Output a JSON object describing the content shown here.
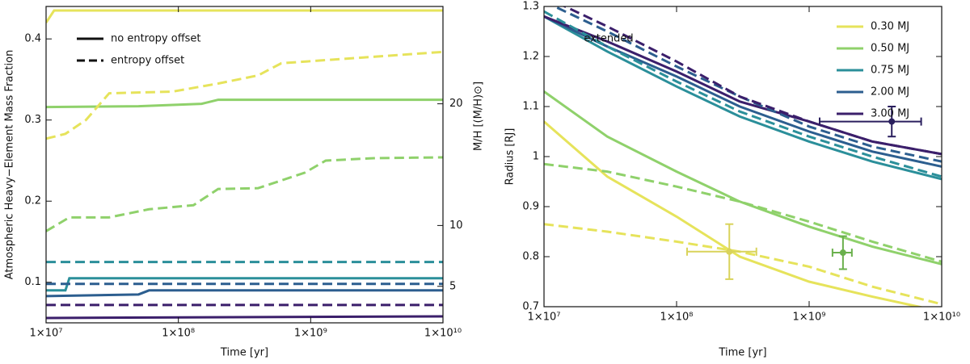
{
  "chart_data": [
    {
      "type": "line",
      "xlabel": "Time [yr]",
      "ylabel": "Atmospheric Heavy−Element Mass Fraction",
      "y2label": "M/H [(M/H)⊙]",
      "xscale": "log",
      "xlim": [
        10000000.0,
        10000000000.0
      ],
      "xticks": [
        {
          "value": 10000000.0,
          "label": "1×10⁷"
        },
        {
          "value": 100000000.0,
          "label": "1×10⁸"
        },
        {
          "value": 1000000000.0,
          "label": "1×10⁹"
        },
        {
          "value": 10000000000.0,
          "label": "1×10¹⁰"
        }
      ],
      "ylim": [
        0.05,
        0.44
      ],
      "yticks": [
        0.1,
        0.2,
        0.3,
        0.4
      ],
      "y2lim": [
        2,
        28
      ],
      "y2ticks": [
        5,
        10,
        20
      ],
      "legend": [
        {
          "label": "no entropy offset",
          "dash": false
        },
        {
          "label": "entropy offset",
          "dash": true
        }
      ],
      "series": [
        {
          "color": "#e6e35b",
          "dash": false,
          "x": [
            10000000.0,
            11500000.0,
            10000000000.0
          ],
          "values": [
            0.42,
            0.435,
            0.435
          ]
        },
        {
          "color": "#8fd16b",
          "dash": false,
          "x": [
            10000000.0,
            50000000.0,
            150000000.0,
            200000000.0,
            10000000000.0
          ],
          "values": [
            0.316,
            0.317,
            0.32,
            0.325,
            0.325
          ]
        },
        {
          "color": "#e6e35b",
          "dash": true,
          "x": [
            10000000.0,
            14000000.0,
            20000000.0,
            30000000.0,
            90000000.0,
            200000000.0,
            400000000.0,
            600000000.0,
            10000000000.0
          ],
          "values": [
            0.277,
            0.283,
            0.3,
            0.333,
            0.335,
            0.345,
            0.355,
            0.37,
            0.384
          ]
        },
        {
          "color": "#8fd16b",
          "dash": true,
          "x": [
            10000000.0,
            15000000.0,
            30000000.0,
            60000000.0,
            130000000.0,
            200000000.0,
            400000000.0,
            900000000.0,
            1300000000.0,
            3000000000.0,
            10000000000.0
          ],
          "values": [
            0.163,
            0.18,
            0.18,
            0.19,
            0.195,
            0.215,
            0.216,
            0.235,
            0.25,
            0.253,
            0.254
          ]
        },
        {
          "color": "#2b8f9a",
          "dash": true,
          "x": [
            10000000.0,
            10000000000.0
          ],
          "values": [
            0.125,
            0.125
          ]
        },
        {
          "color": "#2b8f9a",
          "dash": false,
          "x": [
            10000000.0,
            14000000.0,
            15000000.0,
            10000000000.0
          ],
          "values": [
            0.09,
            0.09,
            0.105,
            0.105
          ]
        },
        {
          "color": "#2c5e8f",
          "dash": true,
          "x": [
            10000000.0,
            10000000000.0
          ],
          "values": [
            0.098,
            0.098
          ]
        },
        {
          "color": "#2c5e8f",
          "dash": false,
          "x": [
            10000000.0,
            50000000.0,
            60000000.0,
            10000000000.0
          ],
          "values": [
            0.083,
            0.085,
            0.09,
            0.09
          ]
        },
        {
          "color": "#3b1f6b",
          "dash": true,
          "x": [
            10000000.0,
            10000000000.0
          ],
          "values": [
            0.072,
            0.072
          ]
        },
        {
          "color": "#3b1f6b",
          "dash": false,
          "x": [
            10000000.0,
            10000000000.0
          ],
          "values": [
            0.056,
            0.058
          ]
        }
      ]
    },
    {
      "type": "line",
      "xlabel": "Time [yr]",
      "ylabel": "Radius [RJ]",
      "annotation": "extended",
      "xscale": "log",
      "xlim": [
        10000000.0,
        10000000000.0
      ],
      "xticks": [
        {
          "value": 10000000.0,
          "label": "1×10⁷"
        },
        {
          "value": 100000000.0,
          "label": "1×10⁸"
        },
        {
          "value": 1000000000.0,
          "label": "1×10⁹"
        },
        {
          "value": 10000000000.0,
          "label": "1×10¹⁰"
        }
      ],
      "ylim": [
        0.7,
        1.3
      ],
      "yticks": [
        0.7,
        0.8,
        0.9,
        1.0,
        1.1,
        1.2,
        1.3
      ],
      "legend": [
        {
          "label": "0.30 MJ",
          "color": "#e6e35b"
        },
        {
          "label": "0.50 MJ",
          "color": "#8fd16b"
        },
        {
          "label": "0.75 MJ",
          "color": "#2b8f9a"
        },
        {
          "label": "2.00 MJ",
          "color": "#2c5e8f"
        },
        {
          "label": "3.00 MJ",
          "color": "#3b1f6b"
        }
      ],
      "series": [
        {
          "color": "#e6e35b",
          "dash": false,
          "x": [
            10000000.0,
            30000000.0,
            100000000.0,
            300000000.0,
            1000000000.0,
            3000000000.0,
            10000000000.0
          ],
          "values": [
            1.07,
            0.96,
            0.88,
            0.8,
            0.75,
            0.72,
            0.69
          ]
        },
        {
          "color": "#8fd16b",
          "dash": false,
          "x": [
            10000000.0,
            30000000.0,
            100000000.0,
            300000000.0,
            1000000000.0,
            3000000000.0,
            10000000000.0
          ],
          "values": [
            1.13,
            1.04,
            0.97,
            0.91,
            0.86,
            0.82,
            0.785
          ]
        },
        {
          "color": "#2b8f9a",
          "dash": false,
          "x": [
            10000000.0,
            30000000.0,
            100000000.0,
            300000000.0,
            1000000000.0,
            3000000000.0,
            10000000000.0
          ],
          "values": [
            1.28,
            1.21,
            1.14,
            1.08,
            1.03,
            0.99,
            0.955
          ]
        },
        {
          "color": "#2c5e8f",
          "dash": false,
          "x": [
            10000000.0,
            30000000.0,
            100000000.0,
            300000000.0,
            1000000000.0,
            3000000000.0,
            10000000000.0
          ],
          "values": [
            1.28,
            1.22,
            1.16,
            1.1,
            1.05,
            1.01,
            0.98
          ]
        },
        {
          "color": "#3b1f6b",
          "dash": false,
          "x": [
            10000000.0,
            30000000.0,
            100000000.0,
            300000000.0,
            1000000000.0,
            3000000000.0,
            10000000000.0
          ],
          "values": [
            1.28,
            1.23,
            1.17,
            1.11,
            1.07,
            1.03,
            1.005
          ]
        },
        {
          "color": "#e6e35b",
          "dash": true,
          "x": [
            10000000.0,
            30000000.0,
            100000000.0,
            300000000.0,
            1000000000.0,
            3000000000.0,
            10000000000.0
          ],
          "values": [
            0.865,
            0.85,
            0.83,
            0.81,
            0.78,
            0.74,
            0.705
          ]
        },
        {
          "color": "#8fd16b",
          "dash": true,
          "x": [
            10000000.0,
            30000000.0,
            100000000.0,
            300000000.0,
            1000000000.0,
            3000000000.0,
            10000000000.0
          ],
          "values": [
            0.985,
            0.97,
            0.94,
            0.91,
            0.87,
            0.83,
            0.79
          ]
        },
        {
          "color": "#2b8f9a",
          "dash": true,
          "x": [
            10000000.0,
            30000000.0,
            100000000.0,
            300000000.0,
            1000000000.0,
            3000000000.0,
            10000000000.0
          ],
          "values": [
            1.29,
            1.22,
            1.15,
            1.09,
            1.04,
            1.0,
            0.96
          ]
        },
        {
          "color": "#2c5e8f",
          "dash": true,
          "x": [
            10000000.0,
            30000000.0,
            100000000.0,
            300000000.0,
            1000000000.0,
            3000000000.0,
            10000000000.0
          ],
          "values": [
            1.31,
            1.25,
            1.18,
            1.12,
            1.06,
            1.02,
            0.99
          ]
        },
        {
          "color": "#3b1f6b",
          "dash": true,
          "x": [
            10000000.0,
            30000000.0,
            100000000.0,
            300000000.0,
            1000000000.0,
            3000000000.0,
            10000000000.0
          ],
          "values": [
            1.32,
            1.26,
            1.19,
            1.12,
            1.07,
            1.03,
            1.005
          ]
        }
      ],
      "points": [
        {
          "color": "#d9d35a",
          "x": 250000000.0,
          "y": 0.81,
          "xmin": 120000000.0,
          "xmax": 400000000.0,
          "yerr": 0.055
        },
        {
          "color": "#6ab04c",
          "x": 1800000000.0,
          "y": 0.808,
          "xmin": 1500000000.0,
          "xmax": 2100000000.0,
          "yerr": 0.033
        },
        {
          "color": "#2a1f5e",
          "x": 4200000000.0,
          "y": 1.07,
          "xmin": 1200000000.0,
          "xmax": 7000000000.0,
          "yerr": 0.03
        }
      ]
    }
  ]
}
